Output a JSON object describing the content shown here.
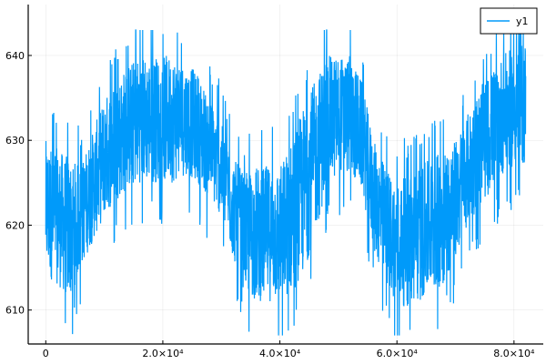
{
  "chart_data": {
    "type": "line",
    "title": "",
    "xlabel": "",
    "ylabel": "",
    "xlim": [
      -3000,
      85000
    ],
    "ylim": [
      606,
      646
    ],
    "grid": true,
    "legend_position": "top-right",
    "x_ticks": [
      {
        "value": 0,
        "label": "0"
      },
      {
        "value": 20000,
        "label": "2.0×10⁴"
      },
      {
        "value": 40000,
        "label": "4.0×10⁴"
      },
      {
        "value": 60000,
        "label": "6.0×10⁴"
      },
      {
        "value": 80000,
        "label": "8.0×10⁴"
      }
    ],
    "y_ticks": [
      {
        "value": 610,
        "label": "610"
      },
      {
        "value": 620,
        "label": "620"
      },
      {
        "value": 630,
        "label": "630"
      },
      {
        "value": 640,
        "label": "640"
      }
    ],
    "series": [
      {
        "name": "y1",
        "color": "#009AFA",
        "envelope_x": [
          0,
          2000,
          4000,
          6000,
          8000,
          10000,
          12000,
          14000,
          16000,
          18000,
          20000,
          22000,
          24000,
          26000,
          28000,
          30000,
          32000,
          34000,
          36000,
          38000,
          40000,
          42000,
          44000,
          46000,
          48000,
          50000,
          52000,
          54000,
          56000,
          58000,
          60000,
          62000,
          64000,
          66000,
          68000,
          70000,
          72000,
          74000,
          76000,
          78000,
          80000,
          82000
        ],
        "envelope_low": [
          614,
          613,
          611,
          615,
          618,
          621,
          623,
          624,
          625,
          625,
          625,
          625,
          626,
          625,
          623,
          621,
          616,
          612,
          611,
          611,
          611,
          612,
          614,
          619,
          624,
          626,
          626,
          624,
          617,
          613,
          611,
          610,
          611,
          612,
          613,
          616,
          620,
          622,
          624,
          626,
          627,
          627
        ],
        "envelope_high": [
          630,
          629,
          628,
          627,
          631,
          635,
          637,
          639,
          640,
          640,
          640,
          640,
          639,
          638,
          635,
          632,
          628,
          626,
          627,
          627,
          627,
          630,
          634,
          637,
          640,
          640,
          640,
          637,
          630,
          627,
          625,
          626,
          627,
          628,
          629,
          630,
          633,
          636,
          638,
          640,
          641,
          642
        ],
        "spike_max": 643,
        "spike_min": 607
      }
    ]
  }
}
